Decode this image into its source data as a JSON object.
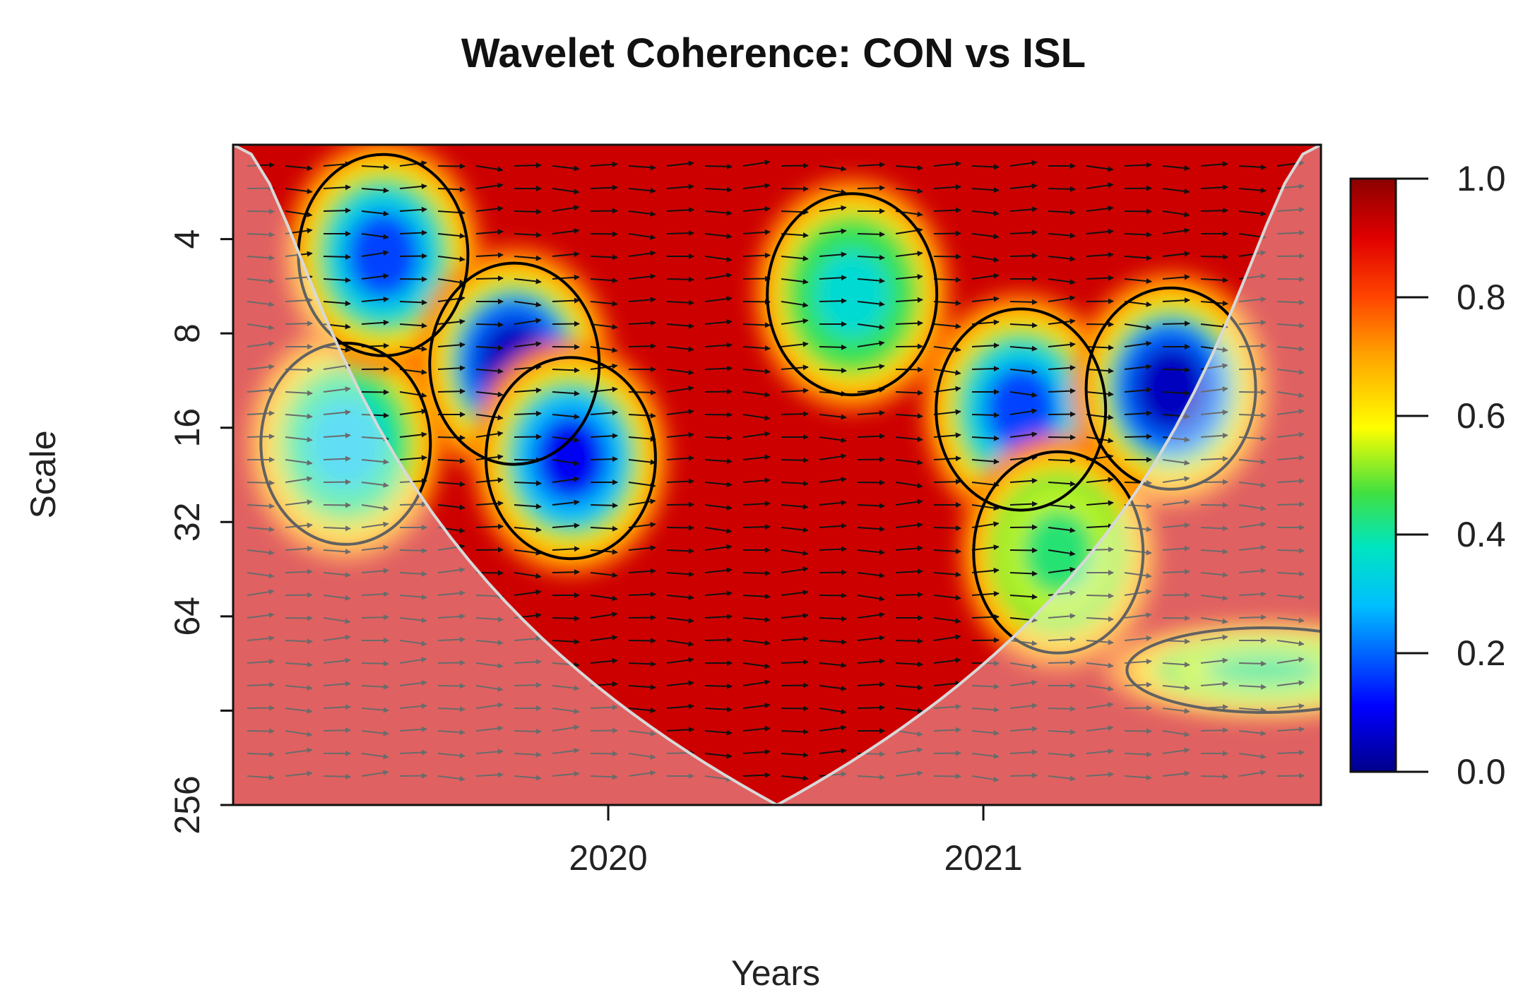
{
  "chart_data": {
    "type": "heatmap",
    "title": "Wavelet Coherence: CON vs ISL",
    "xlabel": "Years",
    "ylabel": "Scale",
    "x_range": [
      2019.0,
      2021.9
    ],
    "x_ticks": [
      {
        "value": 2020,
        "label": "2020"
      },
      {
        "value": 2021,
        "label": "2021"
      }
    ],
    "y_scale": "log2",
    "y_range": [
      2,
      256
    ],
    "y_ticks": [
      {
        "value": 4,
        "label": "4"
      },
      {
        "value": 8,
        "label": "8"
      },
      {
        "value": 16,
        "label": "16"
      },
      {
        "value": 32,
        "label": "32"
      },
      {
        "value": 64,
        "label": "64"
      },
      {
        "value": 128,
        "label": ""
      },
      {
        "value": 256,
        "label": "256"
      }
    ],
    "colorbar": {
      "range": [
        0.0,
        1.0
      ],
      "ticks": [
        {
          "value": 1.0,
          "label": "1.0"
        },
        {
          "value": 0.8,
          "label": "0.8"
        },
        {
          "value": 0.6,
          "label": "0.6"
        },
        {
          "value": 0.4,
          "label": "0.4"
        },
        {
          "value": 0.2,
          "label": "0.2"
        },
        {
          "value": 0.0,
          "label": "0.0"
        }
      ],
      "colormap": [
        "#00008b",
        "#0000ff",
        "#00bfff",
        "#00e5c0",
        "#40e040",
        "#ffff00",
        "#ffa500",
        "#ff4500",
        "#e00000",
        "#8b0000"
      ]
    },
    "low_coherence_regions": [
      {
        "x": 2019.3,
        "scale": 18,
        "coherence": 0.25
      },
      {
        "x": 2019.4,
        "scale": 4.5,
        "coherence": 0.15
      },
      {
        "x": 2019.75,
        "scale": 10,
        "coherence": 0.05
      },
      {
        "x": 2019.9,
        "scale": 20,
        "coherence": 0.1
      },
      {
        "x": 2020.65,
        "scale": 6,
        "coherence": 0.3
      },
      {
        "x": 2021.1,
        "scale": 14,
        "coherence": 0.15
      },
      {
        "x": 2021.2,
        "scale": 40,
        "coherence": 0.4
      },
      {
        "x": 2021.5,
        "scale": 12,
        "coherence": 0.05
      },
      {
        "x": 2021.75,
        "scale": 95,
        "coherence": 0.4
      }
    ],
    "background_coherence": 0.95,
    "cone_of_influence": "shaded outside"
  }
}
